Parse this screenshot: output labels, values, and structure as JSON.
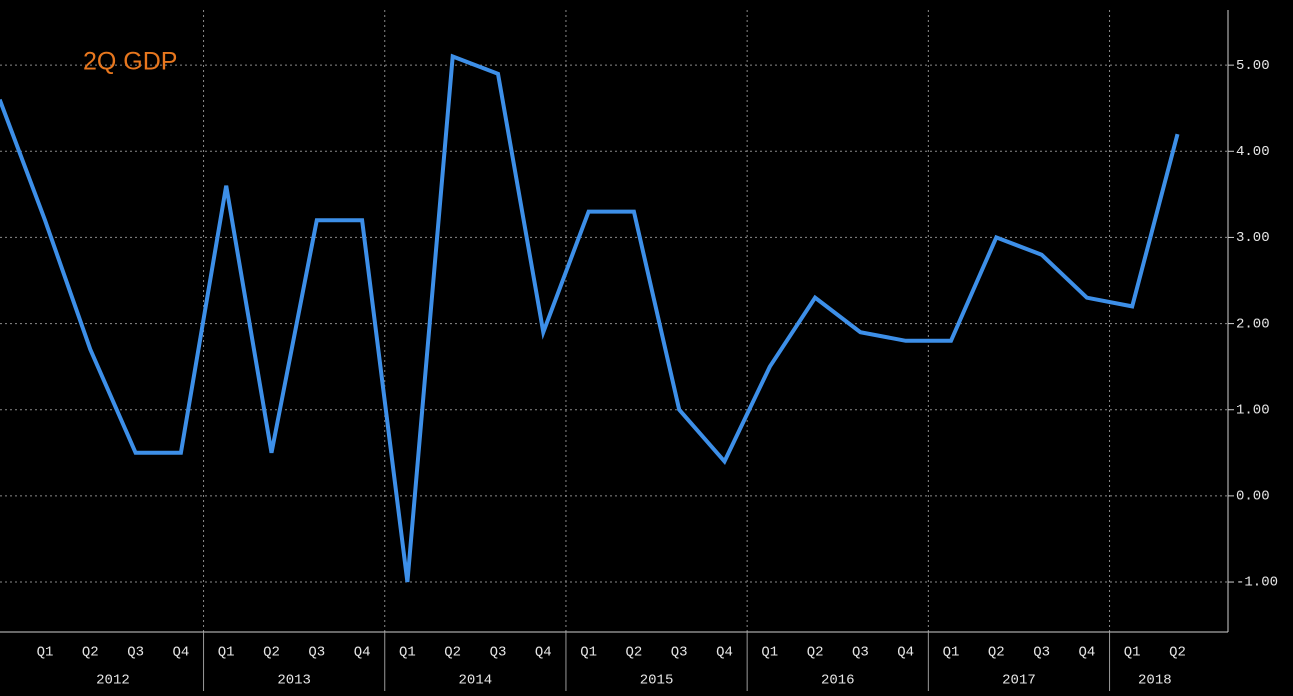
{
  "chart_data": {
    "type": "line",
    "title": "2Q GDP",
    "categories": [
      null,
      "Q1",
      "Q2",
      "Q3",
      "Q4",
      "Q1",
      "Q2",
      "Q3",
      "Q4",
      "Q1",
      "Q2",
      "Q3",
      "Q4",
      "Q1",
      "Q2",
      "Q3",
      "Q4",
      "Q1",
      "Q2",
      "Q3",
      "Q4",
      "Q1",
      "Q2",
      "Q3",
      "Q4",
      "Q1",
      "Q2"
    ],
    "years": [
      "2012",
      "2013",
      "2014",
      "2015",
      "2016",
      "2017",
      "2018"
    ],
    "series": [
      {
        "name": "GDP",
        "color": "#3d8fe8",
        "values": [
          4.6,
          3.2,
          1.7,
          0.5,
          0.5,
          3.6,
          0.5,
          3.2,
          3.2,
          -1.0,
          5.1,
          4.9,
          1.9,
          3.3,
          3.3,
          1.0,
          0.4,
          1.5,
          2.3,
          1.9,
          1.8,
          1.8,
          3.0,
          2.8,
          2.3,
          2.2,
          4.2
        ]
      }
    ],
    "ylim": [
      -1.58,
      5.64
    ],
    "yticks": [
      {
        "value": -1,
        "label": "-1.00"
      },
      {
        "value": 0,
        "label": "0.00"
      },
      {
        "value": 1,
        "label": "1.00"
      },
      {
        "value": 2,
        "label": "2.00"
      },
      {
        "value": 3,
        "label": "3.00"
      },
      {
        "value": 4,
        "label": "4.00"
      },
      {
        "value": 5,
        "label": "5.00"
      }
    ],
    "title_color": "#e8771e",
    "grid": true
  }
}
